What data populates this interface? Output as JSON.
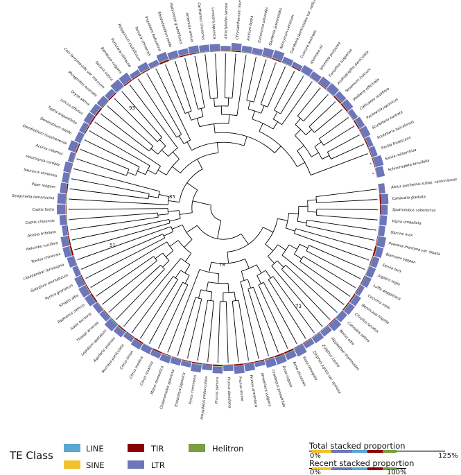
{
  "species": [
    "Abrus pulchellus subsp. cantoniensis",
    "Canavalia gladiata",
    "Spatholobus suberectus",
    "Vigna umbellata",
    "Glycine max",
    "Pueraria montana var. lobata",
    "Biancaea sappan",
    "Senna tora",
    "Juglans regia",
    "Luffa aegyptiaca",
    "Cucumis melo",
    "Benincasa hispida",
    "Citrullus lanatus",
    "Cannabis sativa",
    "Morus alba",
    "Hippophae rhamnoides",
    "Ziziphus jujuba",
    "Ziziphus jujuba var. spinosa",
    "Rosa laevigata",
    "Rosa chinensis",
    "Rosa rugosa",
    "Crataegus pinnatifida",
    "Armeniaca vulgaris",
    "Prunus armeniaca",
    "Prunus mume",
    "Prunus davidiana",
    "Prunus persica",
    "Amygdalus pedunculata",
    "Pyrus communis",
    "Eriobotrya japonica",
    "Chaenomeles speciosa",
    "Malus domestica",
    "Citrus maxima",
    "Citrus medica",
    "Citrus limon",
    "Murraya paniculata",
    "Aquilaria sinensis",
    "Lepidium apetalum",
    "Thlaspi arvense",
    "Isatis tinctoria",
    "Raphanus sativus",
    "Sinapis alba",
    "Punica granatum",
    "Syzygium aromaticum",
    "Liquidambar formosana",
    "Toxilus chinensis",
    "Nelumbo nucifera",
    "Akebia trifoliata",
    "Coptis chinensis",
    "Coptis teeta",
    "Seagrinella tamariscina",
    "Piper longum",
    "Saururus chinensis",
    "Houttuynia cordata",
    "Acorus calamus",
    "Dendrobium huoshanense",
    "Dendrobium nobile",
    "Typha angustifolia",
    "Juncus effusus",
    "Oryza sativa",
    "Phragmites australis",
    "Coix lacryma-jobi var. ma-yuen",
    "Setaria italica",
    "Bambusa vulgaris",
    "Portulaca oleracea",
    "Polygonum multiflorum",
    "Tamarix chinensis",
    "Impatiens balsamina",
    "Rhododendron molle",
    "Platycodon grandiflorus",
    "Artemisia annua",
    "Carthamus tinctorius",
    "Lonicera japonica",
    "Atractylodes lancea",
    "Chrysanthemum morifolium",
    "Arctium lappa",
    "Eucommia ulmoides",
    "Gardenia jasminoides",
    "Apocynum venetum",
    "Gardenia jasminoides var. radicans",
    "Cuscuta australis",
    "Ipomoea nil",
    "Ipomoea purpurea",
    "Forsythia suspensa",
    "Andrographis paniculata",
    "Sesamum indicum",
    "Verbena officinalis",
    "Callicarpa nudiflora",
    "Paulownia japonicus",
    "Scutellaria barbata",
    "Scutellaria baicalensis",
    "Perilla frutescens",
    "Salvia miltiorrhiza",
    "Schizonepeta tenuifolia"
  ],
  "node_labels": [
    "93",
    "85",
    "51",
    "78",
    "73"
  ],
  "legend": {
    "title": "TE Class",
    "items": [
      {
        "label": "LINE",
        "color": "#5aa7cf"
      },
      {
        "label": "SINE",
        "color": "#f2c12e"
      },
      {
        "label": "TIR",
        "color": "#8b0000"
      },
      {
        "label": "LTR",
        "color": "#6d76b9"
      },
      {
        "label": "Helitron",
        "color": "#78a041"
      }
    ]
  },
  "scales": {
    "total": {
      "title": "Total stacked proportion",
      "min_label": "0%",
      "max_label": "125%"
    },
    "recent": {
      "title": "Recent stacked proportion",
      "min_label": "0%",
      "max_label": "100%"
    }
  },
  "colors": {
    "LINE": "#5aa7cf",
    "SINE": "#f2c12e",
    "TIR": "#8b0000",
    "LTR": "#6d76b9",
    "Helitron": "#78a041",
    "branch": "#000000",
    "tip": "#5577cc"
  }
}
